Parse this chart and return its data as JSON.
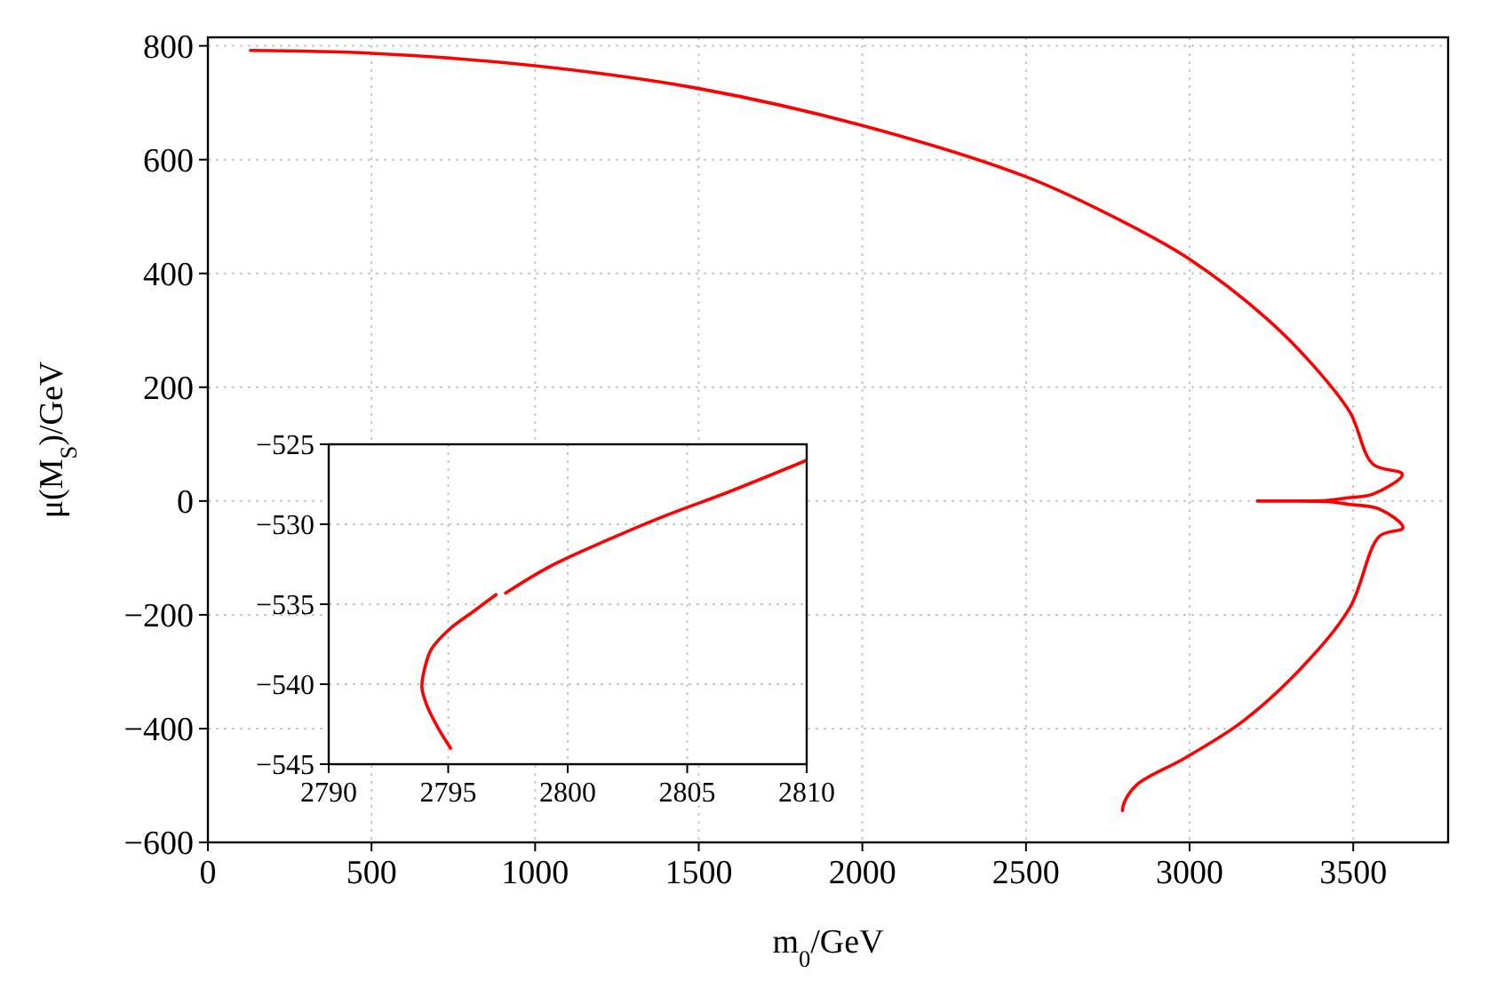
{
  "chart_data": [
    {
      "type": "line",
      "xlabel": "m$_{0}$/GeV",
      "ylabel": "μ(M$_{S}$)/GeV",
      "xlim": [
        0,
        3790
      ],
      "ylim": [
        -600,
        815
      ],
      "xticks": [
        0,
        500,
        1000,
        1500,
        2000,
        2500,
        3000,
        3500
      ],
      "yticks": [
        -600,
        -400,
        -200,
        0,
        200,
        400,
        600,
        800
      ],
      "grid": true,
      "line_style": "solid",
      "series": [
        {
          "color": "#ff0000",
          "x": [
            130,
            500,
            1000,
            1500,
            2000,
            2500,
            2800,
            3000,
            3235,
            3380,
            3490,
            3560,
            3650,
            3560,
            3490,
            3418,
            3300,
            3207,
            3300,
            3418,
            3490,
            3580,
            3652,
            3580,
            3490,
            3342,
            3163,
            2985,
            2838,
            2800,
            2795
          ],
          "values": [
            792,
            787,
            765,
            725,
            660,
            570,
            490,
            425,
            321,
            237,
            156,
            65,
            47,
            12,
            6,
            1,
            0,
            0,
            0,
            -1,
            -6,
            -14,
            -47,
            -62,
            -187,
            -293,
            -387,
            -452,
            -499,
            -530,
            -544
          ]
        }
      ]
    },
    {
      "type": "line",
      "xlim": [
        2790,
        2810
      ],
      "ylim": [
        -545,
        -525
      ],
      "xticks": [
        2790,
        2795,
        2800,
        2805,
        2810
      ],
      "yticks": [
        -545,
        -540,
        -535,
        -530,
        -525
      ],
      "grid": true,
      "line_style": "solid",
      "series": [
        {
          "color": "#ff0000",
          "x": [
            2795.1,
            2794.6,
            2794.1,
            2793.9,
            2794.0,
            2794.3,
            2795.1,
            2796.1,
            2797.0
          ],
          "values": [
            -544.0,
            -542.8,
            -541.3,
            -540.2,
            -539.1,
            -537.8,
            -536.5,
            -535.4,
            -534.4
          ]
        },
        {
          "color": "#ff0000",
          "x": [
            2797.4,
            2799.3,
            2801.8,
            2804.2,
            2806.7,
            2810
          ],
          "values": [
            -534.3,
            -532.6,
            -530.9,
            -529.4,
            -528.0,
            -526.0
          ]
        }
      ]
    }
  ]
}
